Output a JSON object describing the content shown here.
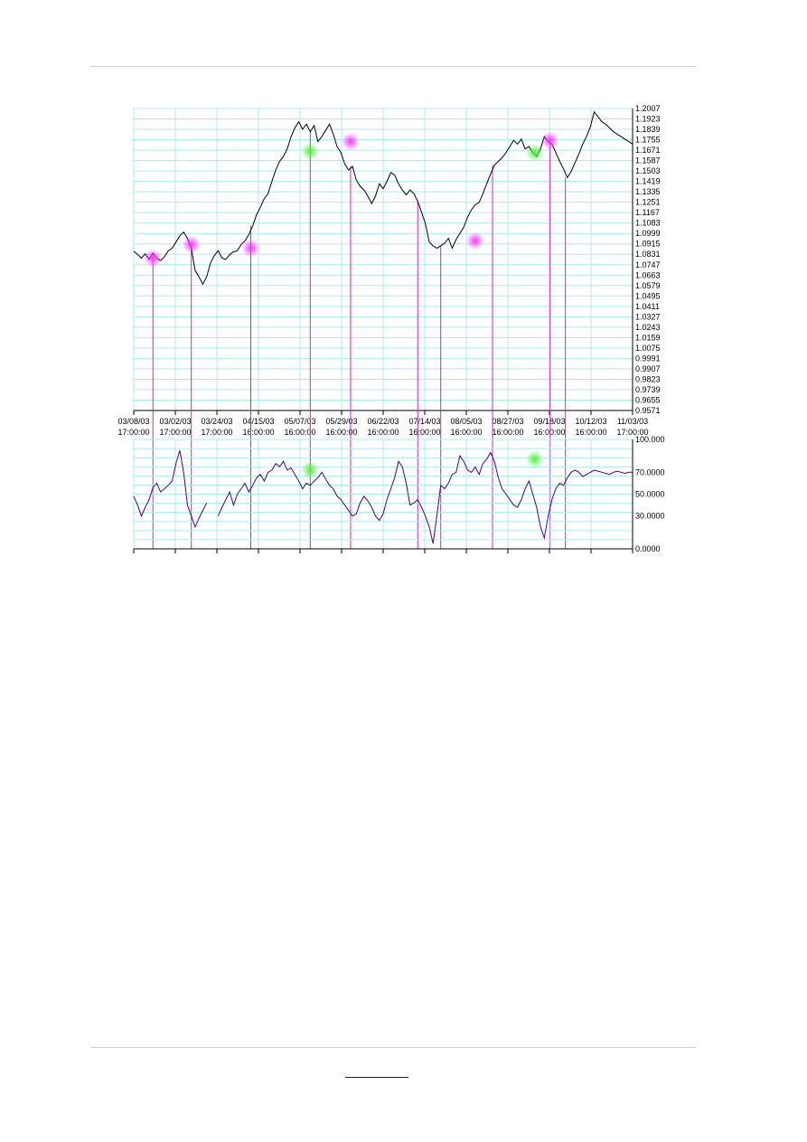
{
  "footer": {
    "link_text": ""
  },
  "chart_data": [
    {
      "type": "line",
      "title": "",
      "ylim": [
        0.9571,
        1.2007
      ],
      "grid": true,
      "y_ticks": [
        "1.2007",
        "1.1923",
        "1.1839",
        "1.1755",
        "1.1671",
        "1.1587",
        "1.1503",
        "1.1419",
        "1.1335",
        "1.1251",
        "1.1167",
        "1.1083",
        "1.0999",
        "1.0915",
        "1.0831",
        "1.0747",
        "1.0663",
        "1.0579",
        "1.0495",
        "1.0411",
        "1.0327",
        "1.0243",
        "1.0159",
        "1.0075",
        "0.9991",
        "0.9907",
        "0.9823",
        "0.9739",
        "0.9655",
        "0.9571"
      ],
      "x_ticks": [
        {
          "date": "03/08/03",
          "time": "17:00:00"
        },
        {
          "date": "03/02/03",
          "time": "17:00:00"
        },
        {
          "date": "03/24/03",
          "time": "17:00:00"
        },
        {
          "date": "04/15/03",
          "time": "16:00:00"
        },
        {
          "date": "05/07/03",
          "time": "16:00:00"
        },
        {
          "date": "05/29/03",
          "time": "16:00:00"
        },
        {
          "date": "06/22/03",
          "time": "16:00:00"
        },
        {
          "date": "07/14/03",
          "time": "16:00:00"
        },
        {
          "date": "08/05/03",
          "time": "16:00:00"
        },
        {
          "date": "08/27/03",
          "time": "16:00:00"
        },
        {
          "date": "09/18/03",
          "time": "16:00:00"
        },
        {
          "date": "10/12/03",
          "time": "16:00:00"
        },
        {
          "date": "11/03/03",
          "time": "17:00:00"
        }
      ],
      "series": [
        {
          "color": "#000000",
          "x": [
            0,
            2,
            4,
            6,
            8,
            10,
            12,
            14,
            16,
            18,
            20,
            22,
            24,
            26,
            28,
            30,
            32,
            34,
            36,
            38,
            40,
            42,
            44,
            46,
            48,
            50,
            52,
            54,
            56,
            58,
            60,
            62,
            64,
            66,
            68,
            70,
            72,
            74,
            76,
            78,
            80,
            82,
            84,
            86,
            88,
            90,
            92,
            94,
            96,
            98,
            100,
            102,
            104,
            106,
            108,
            110,
            112,
            114,
            116,
            118,
            120,
            122,
            124,
            126,
            128,
            130,
            132,
            134,
            136,
            138,
            140,
            142,
            144,
            146,
            148,
            150,
            152,
            154,
            156,
            158,
            160,
            162,
            164,
            166,
            168,
            170,
            172,
            174,
            176,
            178,
            180,
            182,
            184,
            186,
            188,
            190,
            192,
            194,
            196,
            198,
            200,
            202,
            204,
            206,
            208,
            210,
            212,
            214,
            216,
            218,
            220,
            222,
            224,
            226,
            228,
            230,
            232,
            234,
            236,
            238,
            240,
            242,
            244,
            246,
            248,
            250,
            252,
            254,
            256,
            258,
            260
          ],
          "values": [
            1.0855,
            1.083,
            1.08,
            1.0835,
            1.079,
            1.084,
            1.08,
            1.078,
            1.081,
            1.086,
            1.088,
            1.093,
            1.098,
            1.101,
            1.096,
            1.088,
            1.07,
            1.065,
            1.059,
            1.065,
            1.076,
            1.082,
            1.086,
            1.08,
            1.079,
            1.083,
            1.085,
            1.086,
            1.091,
            1.094,
            1.099,
            1.106,
            1.115,
            1.121,
            1.128,
            1.132,
            1.142,
            1.151,
            1.158,
            1.162,
            1.168,
            1.178,
            1.185,
            1.19,
            1.184,
            1.188,
            1.182,
            1.187,
            1.174,
            1.178,
            1.183,
            1.188,
            1.18,
            1.17,
            1.165,
            1.156,
            1.151,
            1.154,
            1.143,
            1.138,
            1.135,
            1.13,
            1.124,
            1.13,
            1.14,
            1.136,
            1.142,
            1.149,
            1.147,
            1.14,
            1.135,
            1.131,
            1.135,
            1.132,
            1.126,
            1.117,
            1.108,
            1.093,
            1.09,
            1.088,
            1.09,
            1.092,
            1.096,
            1.088,
            1.095,
            1.1,
            1.105,
            1.113,
            1.119,
            1.123,
            1.125,
            1.132,
            1.14,
            1.148,
            1.155,
            1.158,
            1.161,
            1.165,
            1.17,
            1.175,
            1.172,
            1.176,
            1.168,
            1.17,
            1.165,
            1.162,
            1.168,
            1.178,
            1.174,
            1.172,
            1.165,
            1.158,
            1.152,
            1.145,
            1.15,
            1.157,
            1.164,
            1.172,
            1.178,
            1.186,
            1.198,
            1.194,
            1.19,
            1.188,
            1.185,
            1.182,
            1.18,
            1.178,
            1.176,
            1.174,
            1.172
          ]
        }
      ],
      "markers": [
        {
          "x": 10,
          "value": 1.08,
          "color": "#ff33ff"
        },
        {
          "x": 30,
          "value": 1.091,
          "color": "#ff33ff"
        },
        {
          "x": 61,
          "value": 1.088,
          "color": "#ff33ff"
        },
        {
          "x": 92,
          "value": 1.166,
          "color": "#66ee55"
        },
        {
          "x": 113,
          "value": 1.174,
          "color": "#ff33ff"
        },
        {
          "x": 178,
          "value": 1.094,
          "color": "#ff33ff"
        },
        {
          "x": 209,
          "value": 1.165,
          "color": "#66ee55"
        },
        {
          "x": 217,
          "value": 1.175,
          "color": "#ff33ff"
        }
      ],
      "signal_lines_x": [
        10,
        30,
        61,
        92,
        113,
        148,
        160,
        187,
        217,
        225
      ]
    },
    {
      "type": "line",
      "title": "",
      "ylim": [
        0,
        100
      ],
      "grid": true,
      "y_ticks": [
        "100.000",
        "70.0000",
        "50.0000",
        "30.0000",
        "0.0000"
      ],
      "y_tick_values": [
        100,
        70,
        50,
        30,
        0
      ],
      "series": [
        {
          "color": "#4b0082",
          "x": [
            0,
            2,
            4,
            6,
            8,
            10,
            12,
            14,
            16,
            18,
            20,
            22,
            24,
            26,
            28,
            30,
            32,
            34,
            36,
            38,
            40,
            42,
            44,
            46,
            48,
            50,
            52,
            54,
            56,
            58,
            60,
            62,
            64,
            66,
            68,
            70,
            72,
            74,
            76,
            78,
            80,
            82,
            84,
            86,
            88,
            90,
            92,
            94,
            96,
            98,
            100,
            102,
            104,
            106,
            108,
            110,
            112,
            114,
            116,
            118,
            120,
            122,
            124,
            126,
            128,
            130,
            132,
            134,
            136,
            138,
            140,
            142,
            144,
            146,
            148,
            150,
            152,
            154,
            156,
            158,
            160,
            162,
            164,
            166,
            168,
            170,
            172,
            174,
            176,
            178,
            180,
            182,
            184,
            186,
            188,
            190,
            192,
            194,
            196,
            198,
            200,
            202,
            204,
            206,
            208,
            210,
            212,
            214,
            216,
            218,
            220,
            222,
            224,
            226,
            228,
            230,
            232,
            234,
            236,
            238,
            240,
            242,
            244,
            246,
            248,
            250,
            252,
            254,
            256,
            258,
            260
          ],
          "values": [
            48,
            40,
            30,
            38,
            45,
            56,
            60,
            52,
            55,
            58,
            62,
            78,
            90,
            70,
            40,
            30,
            20,
            28,
            35,
            42,
            null,
            null,
            30,
            38,
            45,
            52,
            40,
            50,
            55,
            60,
            52,
            58,
            65,
            68,
            62,
            70,
            72,
            78,
            75,
            80,
            72,
            74,
            68,
            62,
            55,
            60,
            58,
            62,
            65,
            70,
            64,
            58,
            55,
            48,
            45,
            40,
            35,
            30,
            32,
            42,
            48,
            44,
            38,
            30,
            26,
            32,
            45,
            55,
            65,
            80,
            75,
            60,
            40,
            42,
            45,
            38,
            30,
            20,
            5,
            30,
            58,
            55,
            60,
            68,
            70,
            85,
            80,
            72,
            70,
            75,
            68,
            78,
            82,
            88,
            80,
            65,
            55,
            50,
            45,
            40,
            38,
            45,
            55,
            62,
            50,
            38,
            20,
            10,
            30,
            45,
            55,
            60,
            58,
            65,
            70,
            72,
            70,
            66,
            68,
            70,
            72,
            71,
            70,
            69,
            68,
            70,
            71,
            70,
            69,
            70,
            70
          ]
        }
      ],
      "markers": [
        {
          "x": 92,
          "value": 72,
          "color": "#66ee55"
        },
        {
          "x": 209,
          "value": 82,
          "color": "#66ee55"
        }
      ]
    }
  ]
}
